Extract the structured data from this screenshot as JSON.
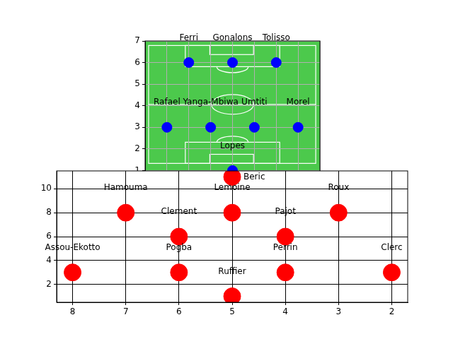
{
  "chart_data": [
    {
      "type": "scatter",
      "x": [
        4,
        1,
        3,
        5,
        7,
        2,
        4,
        6
      ],
      "values": [
        1,
        3,
        3,
        3,
        3,
        6,
        6,
        6
      ],
      "point_labels": [
        "Lopes",
        "Rafael",
        "Yanga-Mbiwa",
        "Umtiti",
        "Morel",
        "Ferri",
        "Gonalons",
        "Tolisso"
      ],
      "color": "#0000ff",
      "marker": "circle",
      "xlim": [
        0,
        8
      ],
      "xticks": [
        0,
        1,
        2,
        3,
        4,
        5,
        6,
        7,
        8
      ],
      "ylim": [
        0,
        7
      ],
      "yticks": [
        1,
        2,
        3,
        4,
        5,
        6,
        7
      ],
      "grid": true,
      "tick_labels": "y"
    },
    {
      "type": "scatter",
      "x": [
        5,
        8,
        6,
        4,
        2,
        6,
        4,
        7,
        5,
        3,
        5
      ],
      "values": [
        1,
        3,
        3,
        3,
        3,
        6,
        6,
        8,
        8,
        8,
        11
      ],
      "point_labels": [
        "Ruffier",
        "Assou-Ekotto",
        "Pogba",
        "Perrin",
        "Clerc",
        "Clement",
        "Pajot",
        "Hamouma",
        "Lemoine",
        "Roux",
        "Beric"
      ],
      "color": "#ff0000",
      "marker": "circle",
      "xlim": [
        8.3,
        1.7
      ],
      "xticks": [
        8,
        7,
        6,
        5,
        4,
        3,
        2
      ],
      "ylim": [
        0.5,
        11.5
      ],
      "yticks": [
        2,
        4,
        6,
        8,
        10
      ],
      "grid": true
    }
  ]
}
